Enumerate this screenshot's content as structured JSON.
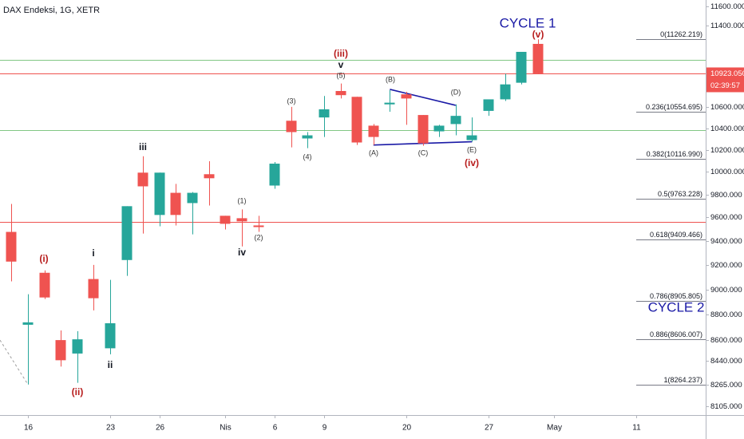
{
  "chart_data": {
    "type": "candlestick",
    "title": "DAX Endeksi, 1G, XETR",
    "x": [
      -1,
      0,
      1,
      2,
      3,
      4,
      5,
      6,
      7,
      8,
      9,
      10,
      11,
      12,
      13,
      14,
      15,
      16,
      17,
      18,
      19,
      20,
      21,
      22,
      23,
      24,
      25,
      26,
      27,
      28,
      29,
      30,
      31
    ],
    "open": [
      9476,
      8719,
      9135,
      8600,
      8497,
      9084,
      8537,
      9240,
      9993,
      9621,
      9814,
      9724,
      9979,
      9614,
      9593,
      9531,
      9878,
      10469,
      10304,
      10500,
      10752,
      10696,
      10423,
      10624,
      10720,
      10523,
      10370,
      10438,
      10289,
      10562,
      10672,
      10832,
      11216
    ],
    "high": [
      9717,
      8961,
      9155,
      8675,
      8669,
      9200,
      9077,
      9697,
      10141,
      9993,
      9893,
      9821,
      10096,
      9614,
      9669,
      9614,
      10089,
      10600,
      10363,
      10704,
      10824,
      10696,
      10438,
      10760,
      10744,
      10523,
      10431,
      10624,
      10500,
      10672,
      10920,
      11136,
      11262.219
    ],
    "low": [
      9065,
      8264.237,
      8923,
      8398,
      8277,
      8832,
      8491,
      9110,
      9462,
      9524,
      9531,
      9455,
      9703,
      9497,
      9353,
      9476,
      9850,
      10222,
      10215,
      10318,
      10680,
      10244,
      10244,
      10554,
      10431,
      10237,
      10318,
      10333,
      10274,
      10515,
      10656,
      10816,
      10923.05
    ],
    "close": [
      9227,
      8738,
      8935,
      8446,
      8606,
      8929,
      8731,
      9697,
      9871,
      9993,
      9621,
      9814,
      9943,
      9545,
      9566,
      9517,
      10074,
      10363,
      10333,
      10577,
      10712,
      10267,
      10318,
      10640,
      10680,
      10259,
      10423,
      10515,
      10333,
      10672,
      10816,
      11136,
      10923.05
    ],
    "up_color": "#26a69a",
    "down_color": "#ef5350",
    "xlim": [
      -1.7,
      41.2
    ],
    "xticks": [
      {
        "value": 0,
        "label": "16"
      },
      {
        "value": 5,
        "label": "23"
      },
      {
        "value": 8,
        "label": "26"
      },
      {
        "value": 12,
        "label": "Nis"
      },
      {
        "value": 15,
        "label": "6"
      },
      {
        "value": 18,
        "label": "9"
      },
      {
        "value": 23,
        "label": "20"
      },
      {
        "value": 28,
        "label": "27"
      },
      {
        "value": 32,
        "label": "May"
      },
      {
        "value": 37,
        "label": "11"
      }
    ],
    "ylim": [
      8041,
      11666
    ],
    "log_scale": true,
    "grid": false,
    "yticks": [
      {
        "value": 11600,
        "label": "11600.000"
      },
      {
        "value": 11400,
        "label": "11400.000"
      },
      {
        "value": 10600,
        "label": "10600.000"
      },
      {
        "value": 10400,
        "label": "10400.000"
      },
      {
        "value": 10200,
        "label": "10200.000"
      },
      {
        "value": 10000,
        "label": "10000.000"
      },
      {
        "value": 9800,
        "label": "9800.000"
      },
      {
        "value": 9600,
        "label": "9600.000"
      },
      {
        "value": 9400,
        "label": "9400.000"
      },
      {
        "value": 9200,
        "label": "9200.000"
      },
      {
        "value": 9000,
        "label": "9000.000"
      },
      {
        "value": 8800,
        "label": "8800.000"
      },
      {
        "value": 8600,
        "label": "8600.000"
      },
      {
        "value": 8440,
        "label": "8440.000"
      },
      {
        "value": 8265,
        "label": "8265.000"
      },
      {
        "value": 8105,
        "label": "8105.000"
      }
    ],
    "last_price": {
      "value": 10923.05,
      "label": "10923.050",
      "color": "#ef5350"
    },
    "countdown": "02:39:57",
    "hlines": [
      {
        "value": 11056,
        "color": "#81c784"
      },
      {
        "value": 10385,
        "color": "#81c784"
      },
      {
        "value": 9559,
        "color": "#ef5350"
      }
    ],
    "fib_levels": [
      {
        "value": 11262.219,
        "label": "0(11262.219)"
      },
      {
        "value": 10554.695,
        "label": "0.236(10554.695)"
      },
      {
        "value": 10116.99,
        "label": "0.382(10116.990)"
      },
      {
        "value": 9763.228,
        "label": "0.5(9763.228)"
      },
      {
        "value": 9409.466,
        "label": "0.618(9409.466)"
      },
      {
        "value": 8905.805,
        "label": "0.786(8905.805)"
      },
      {
        "value": 8606.007,
        "label": "0.886(8606.007)"
      },
      {
        "value": 8264.237,
        "label": "1(8264.237)"
      }
    ],
    "fib_color": "#787b86",
    "trend_lines": [
      {
        "x": [
          22,
          26
        ],
        "y": [
          10768,
          10615
        ],
        "color": "#1a1aa6"
      },
      {
        "x": [
          21,
          27
        ],
        "y": [
          10244,
          10274
        ],
        "color": "#1a1aa6"
      },
      {
        "x": [
          -1.7,
          0
        ],
        "y": [
          8600,
          8264.237
        ],
        "color": "#9e9e9e",
        "dashed": true
      }
    ],
    "annotations": [
      {
        "text": "(i)",
        "color": "#b71c1c"
      },
      {
        "text": "(ii)",
        "color": "#b71c1c"
      },
      {
        "text": "i",
        "color": "#131722"
      },
      {
        "text": "ii",
        "color": "#131722"
      },
      {
        "text": "iii",
        "color": "#131722"
      },
      {
        "text": "(1)",
        "color": "#333333"
      },
      {
        "text": "(2)",
        "color": "#333333"
      },
      {
        "text": "iv",
        "color": "#131722"
      },
      {
        "text": "(3)",
        "color": "#333333"
      },
      {
        "text": "(4)",
        "color": "#333333"
      },
      {
        "text": "(iii)",
        "color": "#b71c1c"
      },
      {
        "text": "v",
        "color": "#131722"
      },
      {
        "text": "(5)",
        "color": "#333333"
      },
      {
        "text": "(A)",
        "color": "#333333"
      },
      {
        "text": "(B)",
        "color": "#333333"
      },
      {
        "text": "(C)",
        "color": "#333333"
      },
      {
        "text": "(D)",
        "color": "#333333"
      },
      {
        "text": "(E)",
        "color": "#333333"
      },
      {
        "text": "(iv)",
        "color": "#b71c1c"
      },
      {
        "text": "(v)",
        "color": "#b71c1c"
      },
      {
        "text": "CYCLE 1",
        "color": "#1a1aa6"
      },
      {
        "text": "CYCLE 2",
        "color": "#1a1aa6"
      }
    ]
  }
}
